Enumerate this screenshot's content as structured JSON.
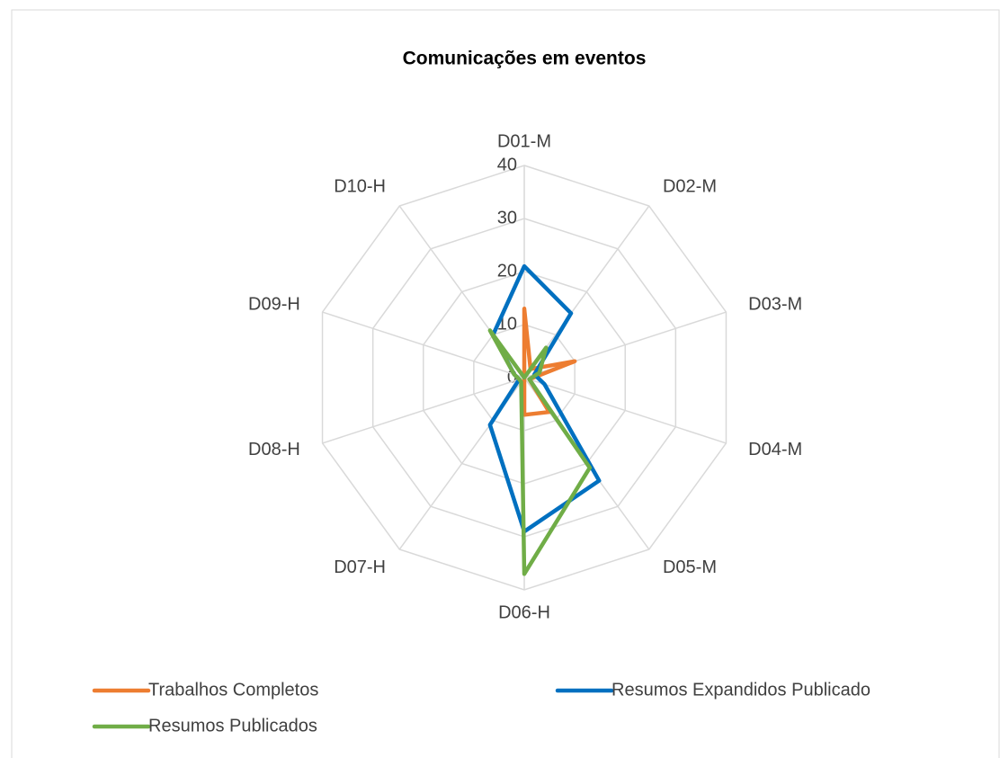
{
  "chart_data": {
    "type": "radar",
    "title": "Comunicações em eventos",
    "categories": [
      "D01-M",
      "D02-M",
      "D03-M",
      "D04-M",
      "D05-M",
      "D06-H",
      "D07-H",
      "D08-H",
      "D09-H",
      "D10-H"
    ],
    "series": [
      {
        "name": "Trabalhos Completos",
        "color": "#ed7d31",
        "values": [
          13,
          2,
          10,
          1,
          8,
          7,
          0,
          0,
          0,
          0
        ]
      },
      {
        "name": "Resumos Expandidos Publicado",
        "color": "#0070c0",
        "values": [
          21,
          15,
          2,
          4,
          24,
          29,
          11,
          1,
          2,
          10
        ]
      },
      {
        "name": "Resumos Publicados",
        "color": "#70ad47",
        "values": [
          0,
          7,
          3,
          1,
          21,
          37,
          1,
          1,
          2,
          11
        ]
      }
    ],
    "ylim": [
      0,
      40
    ],
    "yticks": [
      0,
      10,
      20,
      30,
      40
    ],
    "grid": true
  }
}
